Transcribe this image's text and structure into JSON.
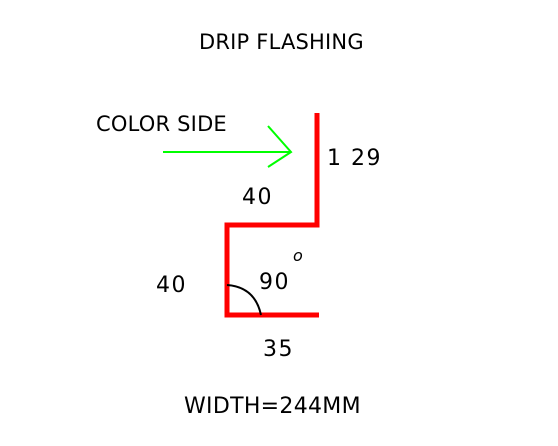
{
  "title": "DRIP FLASHING",
  "color_side_label": "COLOR SIDE",
  "dimensions": {
    "top_leg": "1 29",
    "upper_return": "40",
    "vertical_leg": "40",
    "bottom_leg": "35"
  },
  "angle": {
    "value": "90",
    "degree_mark": "o"
  },
  "width_label": "WIDTH=244MM",
  "colors": {
    "profile": "#ff0000",
    "arrow": "#00ff00",
    "text": "#000000",
    "background": "#ffffff"
  }
}
